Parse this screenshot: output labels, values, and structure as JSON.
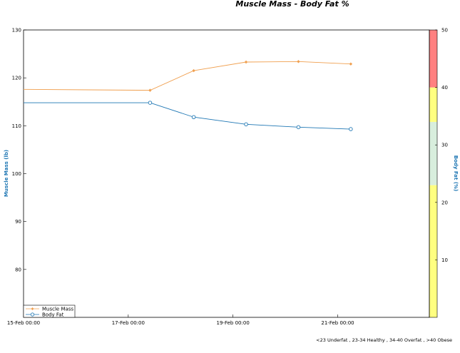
{
  "chart_data": {
    "type": "line",
    "title": "Muscle Mass - Body Fat %",
    "xlabel": "",
    "ylabel": "Muscle Mass (lb)",
    "y2label": "Body Fat (%)",
    "x_ticks": [
      "15-Feb 00:00",
      "17-Feb 00:00",
      "19-Feb 00:00",
      "21-Feb 00:00"
    ],
    "x_range": [
      "15-Feb 00:00",
      "22-Feb 18:00"
    ],
    "y_ticks": [
      80,
      90,
      100,
      110,
      120,
      130
    ],
    "ylim": [
      70,
      130
    ],
    "y2_ticks": [
      10,
      20,
      30,
      40,
      50
    ],
    "y2lim": [
      0,
      50
    ],
    "series": [
      {
        "name": "Muscle Mass",
        "color": "#f0a050",
        "marker": "diamond",
        "axis": "left",
        "x": [
          "15-Feb 00:00",
          "17-Feb 10:00",
          "18-Feb 06:00",
          "19-Feb 06:00",
          "20-Feb 06:00",
          "21-Feb 06:00"
        ],
        "values": [
          117.6,
          117.4,
          121.5,
          123.3,
          123.4,
          122.9
        ]
      },
      {
        "name": "Body Fat",
        "color": "#1f77b4",
        "marker": "circle",
        "axis": "left",
        "x": [
          "15-Feb 00:00",
          "17-Feb 10:00",
          "18-Feb 06:00",
          "19-Feb 06:00",
          "20-Feb 06:00",
          "21-Feb 06:00"
        ],
        "values": [
          114.8,
          114.8,
          111.8,
          110.3,
          109.7,
          109.3
        ]
      }
    ],
    "body_fat_bands": [
      {
        "from": 0,
        "to": 23,
        "color": "#ffff80"
      },
      {
        "from": 23,
        "to": 34,
        "color": "#d8eedd"
      },
      {
        "from": 34,
        "to": 40,
        "color": "#ffff80"
      },
      {
        "from": 40,
        "to": 50,
        "color": "#ff8080"
      }
    ],
    "legend": {
      "placement": "bottom-left",
      "entries": [
        "Muscle Mass",
        "Body Fat"
      ]
    },
    "grid": false,
    "footnote": "<23 Underfat , 23-34 Healthy , 34-40 Overfat , >40 Obese"
  }
}
